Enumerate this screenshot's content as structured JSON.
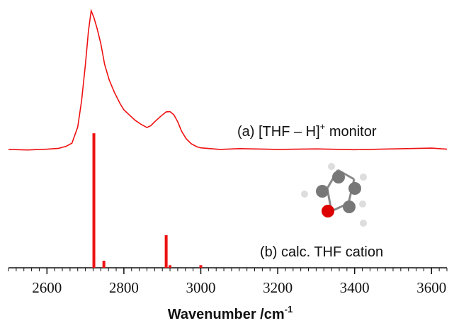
{
  "chart_data": {
    "type": "line",
    "xlabel": {
      "text": "Wavenumber /cm",
      "superscript": "-1"
    },
    "annotations": [
      {
        "parts": [
          "(a) [THF – H]",
          "+",
          " monitor"
        ]
      },
      {
        "parts": [
          "(b) calc. THF cation"
        ]
      }
    ],
    "xlim": [
      2500,
      3640
    ],
    "xticks": [
      2600,
      2800,
      3000,
      3200,
      3400,
      3600
    ],
    "ylim": [
      0,
      100
    ],
    "series": [
      {
        "type": "line",
        "color": "#ee1111",
        "x": [
          2500,
          2550,
          2600,
          2630,
          2650,
          2665,
          2680,
          2690,
          2700,
          2708,
          2715,
          2722,
          2730,
          2740,
          2750,
          2762,
          2775,
          2790,
          2800,
          2815,
          2830,
          2845,
          2860,
          2870,
          2880,
          2895,
          2910,
          2920,
          2930,
          2940,
          2950,
          2962,
          2975,
          2990,
          3000,
          3050,
          3100,
          3200,
          3300,
          3400,
          3500,
          3600,
          3640
        ],
        "values": [
          45.4,
          45.2,
          45.5,
          45.8,
          46.6,
          47.8,
          54,
          64,
          78,
          91,
          98.6,
          96,
          92,
          86,
          78,
          72,
          67.4,
          63,
          60.6,
          58.5,
          56.5,
          55,
          53.8,
          54.5,
          56,
          58,
          59.8,
          59.9,
          58.7,
          56,
          52.4,
          49.5,
          47.6,
          46.4,
          46,
          45.4,
          45.7,
          45.4,
          45.6,
          45.3,
          45.6,
          45.9,
          45.5
        ]
      },
      {
        "type": "stick",
        "color": "#ee1111",
        "x": [
          2722,
          2748,
          2910,
          2920,
          3000
        ],
        "values": [
          51.6,
          2.7,
          12.5,
          1,
          1
        ]
      }
    ]
  }
}
